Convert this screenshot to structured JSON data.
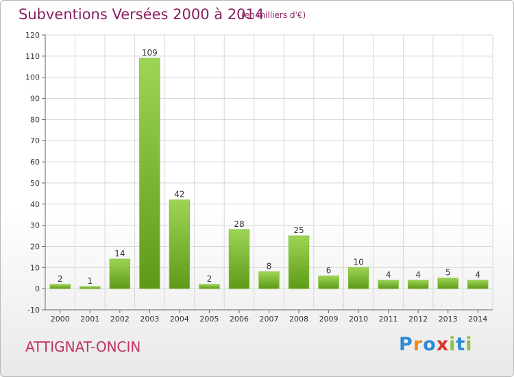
{
  "title": "Subventions Versées 2000 à 2014",
  "subtitle": "(en milliers d'€)",
  "commune": "ATTIGNAT-ONCIN",
  "logo": {
    "text": "Proxiti",
    "letter_colors": [
      "#2a8ad4",
      "#e88a1a",
      "#2a8ad4",
      "#d83030",
      "#8ac040",
      "#2a8ad4",
      "#8ac040"
    ]
  },
  "colors": {
    "title": "#8a2060",
    "commune": "#c03366",
    "bar_light": "#9ed455",
    "bar_dark": "#5e9a18",
    "grid": "#d7d7d7"
  },
  "chart_data": {
    "type": "bar",
    "title": "Subventions Versées 2000 à 2014",
    "subtitle": "(en milliers d'€)",
    "categories": [
      "2000",
      "2001",
      "2002",
      "2003",
      "2004",
      "2005",
      "2006",
      "2007",
      "2008",
      "2009",
      "2010",
      "2011",
      "2012",
      "2013",
      "2014"
    ],
    "values": [
      2,
      1,
      14,
      109,
      42,
      2,
      28,
      8,
      25,
      6,
      10,
      4,
      4,
      5,
      4
    ],
    "ylim": [
      -10,
      120
    ],
    "yticks": [
      -10,
      0,
      10,
      20,
      30,
      40,
      50,
      60,
      70,
      80,
      90,
      100,
      110,
      120
    ],
    "grid": true,
    "legend": "none"
  }
}
